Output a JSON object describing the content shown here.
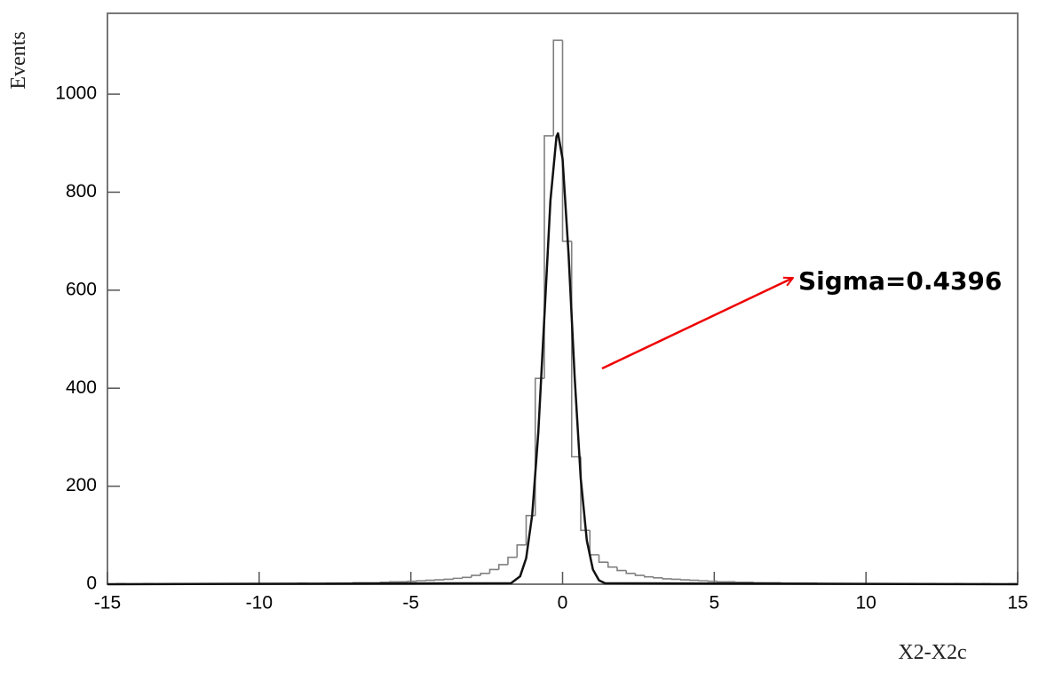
{
  "chart_data": {
    "type": "histogram",
    "y_label": "Events",
    "x_label": "X2-X2c",
    "annotation": "Sigma=0.4396",
    "xlim": [
      -15,
      15
    ],
    "xticks": [
      -15,
      -10,
      -5,
      0,
      5,
      10,
      15
    ],
    "ylim": [
      0,
      1165
    ],
    "yticks": [
      0,
      200,
      400,
      600,
      800,
      1000
    ],
    "color": "#808080",
    "bins": [
      -15,
      -14.7,
      -14.4,
      -14.1,
      -13.8,
      -13.5,
      -13.2,
      -12.9,
      -12.6,
      -12.3,
      -12,
      -11.7,
      -11.4,
      -11.1,
      -10.8,
      -10.5,
      -10.2,
      -9.9,
      -9.6,
      -9.3,
      -9,
      -8.7,
      -8.4,
      -8.1,
      -7.8,
      -7.5,
      -7.2,
      -6.9,
      -6.6,
      -6.3,
      -6,
      -5.7,
      -5.4,
      -5.1,
      -4.8,
      -4.5,
      -4.2,
      -3.9,
      -3.6,
      -3.3,
      -3,
      -2.7,
      -2.4,
      -2.1,
      -1.8,
      -1.5,
      -1.2,
      -0.9,
      -0.6,
      -0.3,
      0,
      0.3,
      0.6,
      0.9,
      1.2,
      1.5,
      1.8,
      2.1,
      2.4,
      2.7,
      3,
      3.3,
      3.6,
      3.9,
      4.2,
      4.5,
      4.8,
      5.1,
      5.4,
      5.7,
      6,
      6.3,
      6.6,
      6.9,
      7.2,
      7.5,
      7.8,
      8.1,
      8.4,
      8.7,
      9,
      9.3,
      9.6,
      9.9,
      10.2,
      10.5,
      10.8,
      11.1,
      11.4,
      11.7,
      12,
      12.3,
      12.6,
      12.9,
      13.2,
      13.5,
      13.8,
      14.1,
      14.4,
      14.7,
      15
    ],
    "counts": [
      0,
      1,
      0,
      0,
      1,
      0,
      0,
      1,
      0,
      1,
      0,
      1,
      1,
      0,
      1,
      1,
      1,
      0,
      1,
      1,
      1,
      2,
      1,
      1,
      2,
      2,
      2,
      3,
      3,
      3,
      4,
      5,
      5,
      6,
      7,
      8,
      9,
      10,
      12,
      14,
      18,
      22,
      30,
      40,
      55,
      80,
      140,
      420,
      915,
      1110,
      700,
      260,
      110,
      60,
      45,
      35,
      28,
      22,
      18,
      15,
      13,
      11,
      10,
      9,
      8,
      7,
      6,
      5,
      5,
      4,
      4,
      3,
      3,
      3,
      2,
      2,
      2,
      2,
      1,
      1,
      1,
      1,
      1,
      1,
      0,
      1,
      1,
      0,
      1,
      0,
      1,
      0,
      0,
      1,
      0,
      0,
      1,
      0,
      0,
      1
    ],
    "fit": {
      "color": "#111111",
      "x": [
        -15,
        -1.7,
        -1.4,
        -1.2,
        -1.0,
        -0.8,
        -0.6,
        -0.4,
        -0.2,
        -0.15,
        0,
        0.2,
        0.4,
        0.6,
        0.8,
        1.0,
        1.2,
        1.4,
        15
      ],
      "values": [
        0,
        2,
        16,
        53,
        142,
        309,
        545,
        783,
        914,
        920,
        868,
        671,
        421,
        215,
        89,
        30,
        8,
        2,
        0
      ]
    }
  }
}
